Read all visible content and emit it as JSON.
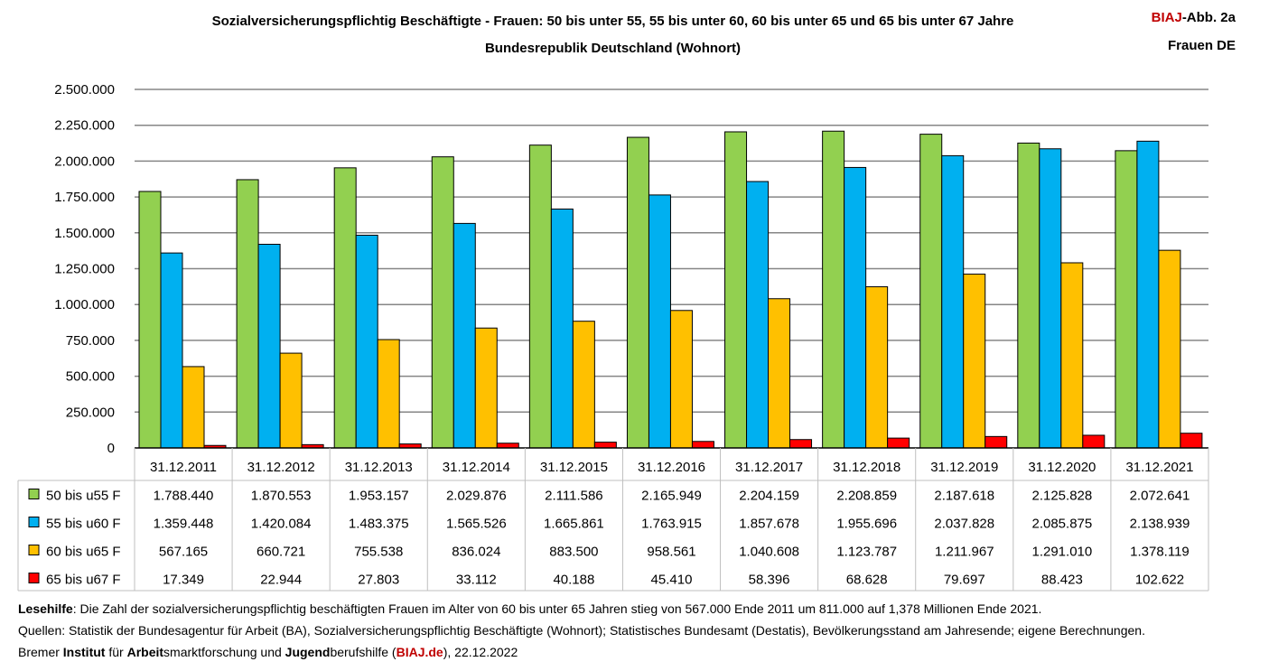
{
  "header": {
    "title_line1": "Sozialversicherungspflichtig Beschäftigte - Frauen: 50 bis unter 55, 55 bis unter 60, 60 bis unter 65 und 65 bis unter 67 Jahre",
    "title_line2": "Bundesrepublik Deutschland (Wohnort)",
    "badge_brand": "BIAJ",
    "badge_rest": "-Abb. 2a",
    "badge_line2": "Frauen DE"
  },
  "chart_data": {
    "type": "bar",
    "title": "Sozialversicherungspflichtig Beschäftigte - Frauen: 50 bis unter 55, 55 bis unter 60, 60 bis unter 65 und 65 bis unter 67 Jahre",
    "subtitle": "Bundesrepublik Deutschland (Wohnort)",
    "xlabel": "",
    "ylabel": "",
    "ylim": [
      0,
      2500000
    ],
    "ytick_values": [
      0,
      250000,
      500000,
      750000,
      1000000,
      1250000,
      1500000,
      1750000,
      2000000,
      2250000,
      2500000
    ],
    "ytick_labels": [
      "0",
      "250.000",
      "500.000",
      "750.000",
      "1.000.000",
      "1.250.000",
      "1.500.000",
      "1.750.000",
      "2.000.000",
      "2.250.000",
      "2.500.000"
    ],
    "grid": true,
    "legend": "data-table-left",
    "categories": [
      "31.12.2011",
      "31.12.2012",
      "31.12.2013",
      "31.12.2014",
      "31.12.2015",
      "31.12.2016",
      "31.12.2017",
      "31.12.2018",
      "31.12.2019",
      "31.12.2020",
      "31.12.2021"
    ],
    "series": [
      {
        "name": "50 bis u55 F",
        "color": "#92d050",
        "values": [
          1788440,
          1870553,
          1953157,
          2029876,
          2111586,
          2165949,
          2204159,
          2208859,
          2187618,
          2125828,
          2072641
        ],
        "labels": [
          "1.788.440",
          "1.870.553",
          "1.953.157",
          "2.029.876",
          "2.111.586",
          "2.165.949",
          "2.204.159",
          "2.208.859",
          "2.187.618",
          "2.125.828",
          "2.072.641"
        ]
      },
      {
        "name": "55 bis u60 F",
        "color": "#00b0f0",
        "values": [
          1359448,
          1420084,
          1483375,
          1565526,
          1665861,
          1763915,
          1857678,
          1955696,
          2037828,
          2085875,
          2138939
        ],
        "labels": [
          "1.359.448",
          "1.420.084",
          "1.483.375",
          "1.565.526",
          "1.665.861",
          "1.763.915",
          "1.857.678",
          "1.955.696",
          "2.037.828",
          "2.085.875",
          "2.138.939"
        ]
      },
      {
        "name": "60 bis u65 F",
        "color": "#ffc000",
        "values": [
          567165,
          660721,
          755538,
          836024,
          883500,
          958561,
          1040608,
          1123787,
          1211967,
          1291010,
          1378119
        ],
        "labels": [
          "567.165",
          "660.721",
          "755.538",
          "836.024",
          "883.500",
          "958.561",
          "1.040.608",
          "1.123.787",
          "1.211.967",
          "1.291.010",
          "1.378.119"
        ]
      },
      {
        "name": "65 bis u67 F",
        "color": "#ff0000",
        "values": [
          17349,
          22944,
          27803,
          33112,
          40188,
          45410,
          58396,
          68628,
          79697,
          88423,
          102622
        ],
        "labels": [
          "17.349",
          "22.944",
          "27.803",
          "33.112",
          "40.188",
          "45.410",
          "58.396",
          "68.628",
          "79.697",
          "88.423",
          "102.622"
        ]
      }
    ]
  },
  "notes": {
    "line1_bold": "Lesehilfe",
    "line1_rest": ": Die Zahl der sozialversicherungspflichtig beschäftigten Frauen im Alter von 60 bis unter 65 Jahren stieg von 567.000 Ende 2011 um 811.000 auf 1,378 Millionen Ende 2021.",
    "line2": "Quellen: Statistik der Bundesagentur für Arbeit (BA), Sozialversicherungspflichtig Beschäftigte (Wohnort); Statistisches Bundesamt (Destatis), Bevölkerungsstand am Jahresende; eigene Berechnungen.",
    "line3_p1": "Bremer ",
    "line3_b1": "Institut",
    "line3_p2": " für ",
    "line3_b2": "Arbeit",
    "line3_p3": "smarktforschung und ",
    "line3_b3": "Jugend",
    "line3_p4": "berufshilfe (",
    "line3_link": "BIAJ.de",
    "line3_p5": "), 22.12.2022"
  }
}
